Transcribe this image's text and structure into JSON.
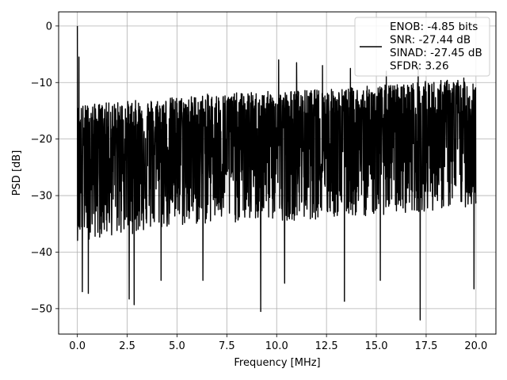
{
  "chart_data": {
    "type": "line",
    "title": "",
    "xlabel": "Frequency [MHz]",
    "ylabel": "PSD [dB]",
    "xlim": [
      -0.94,
      21.0
    ],
    "ylim": [
      -54.5,
      2.5
    ],
    "xticks": [
      0.0,
      2.5,
      5.0,
      7.5,
      10.0,
      12.5,
      15.0,
      17.5,
      20.0
    ],
    "xtick_labels": [
      "0.0",
      "2.5",
      "5.0",
      "7.5",
      "10.0",
      "12.5",
      "15.0",
      "17.5",
      "20.0"
    ],
    "yticks": [
      0,
      -10,
      -20,
      -30,
      -40,
      -50
    ],
    "ytick_labels": [
      "0",
      "−10",
      "−20",
      "−30",
      "−40",
      "−50"
    ],
    "grid": true,
    "legend_position": "top-right",
    "legend": [
      "ENOB: -4.85 bits",
      "SNR: -27.44 dB",
      "SINAD: -27.45 dB",
      "SFDR: 3.26"
    ],
    "series": [
      {
        "color": "#000000",
        "x_range": [
          0.0,
          20.0
        ],
        "typical_floor_db": -21,
        "upper_envelope_db": [
          -14,
          -12,
          -11,
          -9
        ],
        "lower_envelope_db": [
          -38,
          -35,
          -34,
          -32
        ],
        "peaks": [
          {
            "x": 0.0,
            "y": 0.0
          },
          {
            "x": 0.08,
            "y": -5.5
          },
          {
            "x": 10.1,
            "y": -6.0
          },
          {
            "x": 11.0,
            "y": -6.5
          },
          {
            "x": 12.3,
            "y": -7.0
          },
          {
            "x": 13.7,
            "y": -7.5
          },
          {
            "x": 15.5,
            "y": -8.0
          },
          {
            "x": 17.1,
            "y": -7.0
          }
        ],
        "dips": [
          {
            "x": 0.25,
            "y": -47.0
          },
          {
            "x": 0.55,
            "y": -47.3
          },
          {
            "x": 2.6,
            "y": -48.3
          },
          {
            "x": 2.85,
            "y": -49.3
          },
          {
            "x": 4.2,
            "y": -45.0
          },
          {
            "x": 6.3,
            "y": -45.0
          },
          {
            "x": 9.2,
            "y": -50.5
          },
          {
            "x": 10.4,
            "y": -45.5
          },
          {
            "x": 13.4,
            "y": -48.7
          },
          {
            "x": 15.2,
            "y": -45.0
          },
          {
            "x": 17.2,
            "y": -52.0
          },
          {
            "x": 19.9,
            "y": -46.5
          }
        ]
      }
    ]
  }
}
